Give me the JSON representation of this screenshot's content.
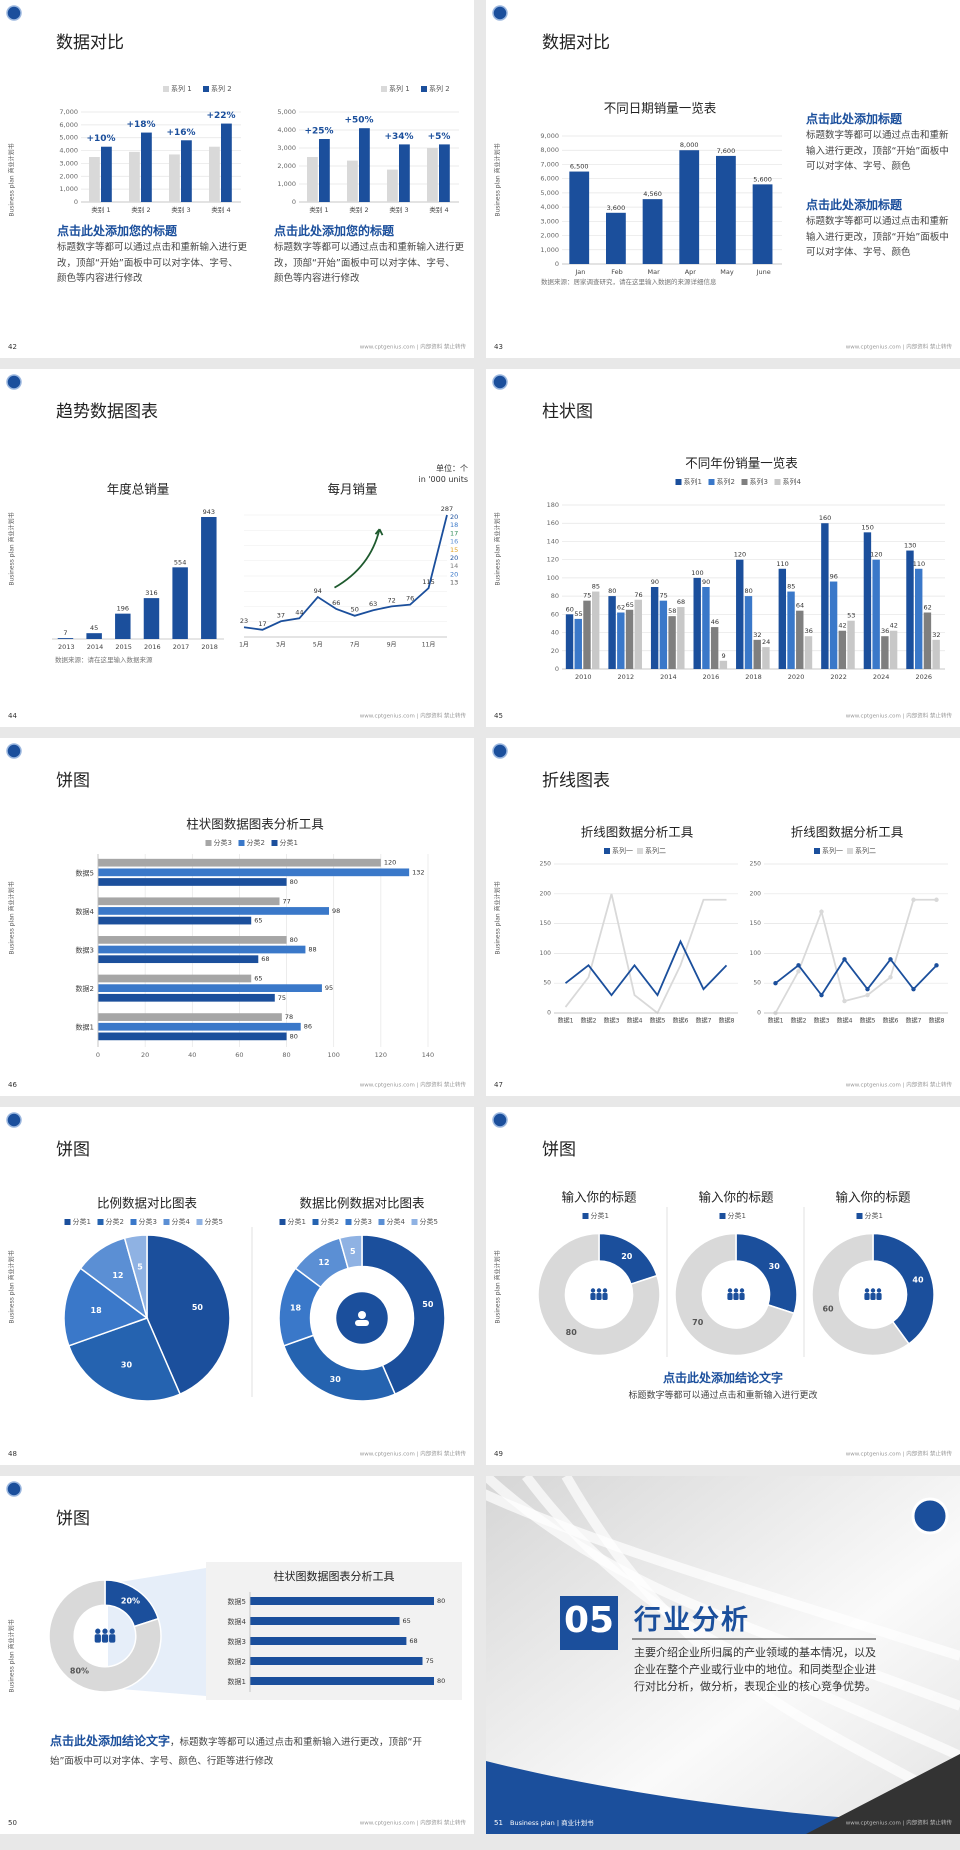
{
  "common": {
    "side_text": "Business plan 商业计划书",
    "footer": "www.cptgenius.com | 内部资料 禁止转传"
  },
  "slides": [
    {
      "page": "42",
      "title": "数据对比",
      "texts": [
        "点击此处添加您的标题",
        "标题数字等都可以通过点击和重新输入进行更改，顶部“开始”面板中可以对字体、字号、颜色等内容进行修改",
        "点击此处添加您的标题",
        "标题数字等都可以通过点击和重新输入进行更改，顶部“开始”面板中可以对字体、字号、颜色等内容进行修改"
      ],
      "charts": [
        {
          "type": "bar",
          "categories": [
            "类别 1",
            "类别 2",
            "类别 3",
            "类别 4"
          ],
          "series": [
            {
              "name": "系列 1",
              "color": "#d9d9d9",
              "values": [
                3500,
                3900,
                3700,
                4300
              ]
            },
            {
              "name": "系列 2",
              "color": "#1b4f9c",
              "values": [
                4300,
                5400,
                4800,
                6100
              ]
            }
          ],
          "ylim": [
            0,
            7000
          ],
          "yticks": [
            0,
            {
              "value": 1000,
              "label": "1,000"
            },
            {
              "value": 2000,
              "label": "2,000"
            },
            {
              "value": 3000,
              "label": "3,000"
            },
            {
              "value": 4000,
              "label": "4,000"
            },
            {
              "value": 5000,
              "label": "5,000"
            },
            {
              "value": 6000,
              "label": "6,000"
            },
            {
              "value": 7000,
              "label": "7,000"
            }
          ],
          "grid": true,
          "legend": "top-right",
          "annotations": [
            "+10%",
            "+18%",
            "+16%",
            "+22%"
          ]
        },
        {
          "type": "bar",
          "categories": [
            "类别 1",
            "类别 2",
            "类别 3",
            "类别 4"
          ],
          "series": [
            {
              "name": "系列 1",
              "color": "#d9d9d9",
              "values": [
                2500,
                2300,
                1800,
                3000
              ]
            },
            {
              "name": "系列 2",
              "color": "#1b4f9c",
              "values": [
                3500,
                4100,
                3200,
                3200
              ]
            }
          ],
          "ylim": [
            0,
            5000
          ],
          "yticks": [
            0,
            {
              "value": 1000,
              "label": "1,000"
            },
            {
              "value": 2000,
              "label": "2,000"
            },
            {
              "value": 3000,
              "label": "3,000"
            },
            {
              "value": 4000,
              "label": "4,000"
            },
            {
              "value": 5000,
              "label": "5,000"
            }
          ],
          "grid": true,
          "legend": "top-right",
          "annotations": [
            "+25%",
            "+50%",
            "+34%",
            "+5%"
          ]
        }
      ]
    },
    {
      "page": "43",
      "title": "数据对比",
      "texts": [
        "点击此处添加标题",
        "标题数字等都可以通过点击和重新输入进行更改，顶部“开始”面板中可以对字体、字号、颜色",
        "点击此处添加标题",
        "标题数字等都可以通过点击和重新输入进行更改，顶部“开始”面板中可以对字体、字号、颜色",
        "数据来源：居家调查研究，请在这里输入数据的来源详细信息"
      ],
      "charts": [
        {
          "type": "bar",
          "title": "不同日期销量一览表",
          "categories": [
            "Jan",
            "Feb",
            "Mar",
            "Apr",
            "May",
            "June"
          ],
          "values": [
            6500,
            3600,
            4560,
            8000,
            7600,
            5600
          ],
          "value_labels": [
            "6,500",
            "3,600",
            "4,560",
            "8,000",
            "7,600",
            "5,600"
          ],
          "color": "#1b4f9c",
          "ylim": [
            0,
            9000
          ],
          "yticks": [
            0,
            {
              "value": 1000,
              "label": "1,000"
            },
            {
              "value": 2000,
              "label": "2,000"
            },
            {
              "value": 3000,
              "label": "3,000"
            },
            {
              "value": 4000,
              "label": "4,000"
            },
            {
              "value": 5000,
              "label": "5,000"
            },
            {
              "value": 6000,
              "label": "6,000"
            },
            {
              "value": 7000,
              "label": "7,000"
            },
            {
              "value": 8000,
              "label": "8,000"
            },
            {
              "value": 9000,
              "label": "9,000"
            }
          ],
          "grid": true,
          "show_values": true
        }
      ]
    },
    {
      "page": "44",
      "title": "趋势数据图表",
      "texts": [
        "单位：个",
        "in '000 units",
        "数据来源：请在这里输入数据来源"
      ],
      "charts": [
        {
          "type": "bar",
          "title": "年度总销量",
          "categories": [
            "2013",
            "2014",
            "2015",
            "2016",
            "2017",
            "2018"
          ],
          "values": [
            7,
            45,
            196,
            316,
            554,
            943
          ],
          "color": "#1b4f9c",
          "show_values": true
        },
        {
          "type": "line",
          "title": "每月销量",
          "categories": [
            "1月",
            null,
            "3月",
            null,
            "5月",
            null,
            "7月",
            null,
            "9月",
            null,
            "11月",
            null
          ],
          "values": [
            23,
            17,
            37,
            44,
            94,
            66,
            50,
            63,
            72,
            76,
            115,
            287
          ],
          "color": "#1b4f9c",
          "show_values": true,
          "end_labels": [
            "20",
            "18",
            "17",
            "16",
            "15",
            "20",
            "14",
            "20",
            "13"
          ]
        }
      ]
    },
    {
      "page": "45",
      "title": "柱状图",
      "texts": [],
      "charts": [
        {
          "type": "bar",
          "title": "不同年份销量一览表",
          "categories": [
            "2010",
            "2012",
            "2014",
            "2016",
            "2018",
            "2020",
            "2022",
            "2024",
            "2026"
          ],
          "series": [
            {
              "name": "系列1",
              "color": "#1b4f9c",
              "values": [
                60,
                80,
                90,
                100,
                120,
                110,
                160,
                150,
                130
              ]
            },
            {
              "name": "系列2",
              "color": "#3a78c9",
              "values": [
                55,
                62,
                75,
                90,
                80,
                85,
                96,
                120,
                110
              ]
            },
            {
              "name": "系列3",
              "color": "#7f7f7f",
              "values": [
                75,
                65,
                58,
                46,
                32,
                64,
                42,
                36,
                62
              ]
            },
            {
              "name": "系列4",
              "color": "#c8c8c8",
              "values": [
                85,
                76,
                68,
                9,
                24,
                36,
                53,
                42,
                32
              ]
            }
          ],
          "ylim": [
            0,
            180
          ],
          "yticks": [
            0,
            20,
            40,
            60,
            80,
            100,
            120,
            140,
            160,
            180
          ],
          "grid": true,
          "legend": "top",
          "show_values": true
        }
      ]
    },
    {
      "page": "46",
      "title": "饼图",
      "texts": [],
      "charts": [
        {
          "type": "hbar",
          "title": "柱状图数据图表分析工具",
          "categories": [
            "数据1",
            "数据2",
            "数据3",
            "数据4",
            "数据5"
          ],
          "series": [
            {
              "name": "分类3",
              "color": "#a6a6a6",
              "values": [
                78,
                65,
                80,
                77,
                120
              ]
            },
            {
              "name": "分类2",
              "color": "#3a78c9",
              "values": [
                86,
                95,
                88,
                98,
                132
              ]
            },
            {
              "name": "分类1",
              "color": "#1b4f9c",
              "values": [
                80,
                75,
                68,
                65,
                80
              ]
            }
          ],
          "xlim": [
            0,
            140
          ],
          "xticks": [
            0,
            20,
            40,
            60,
            80,
            100,
            120,
            140
          ],
          "grid": true,
          "legend": "top",
          "show_values": true
        }
      ]
    },
    {
      "page": "47",
      "title": "折线图表",
      "texts": [],
      "charts": [
        {
          "type": "line",
          "title": "折线图数据分析工具",
          "categories": [
            "数据1",
            "数据2",
            "数据3",
            "数据4",
            "数据5",
            "数据6",
            "数据7",
            "数据8"
          ],
          "series": [
            {
              "name": "系列一",
              "color": "#1b4f9c",
              "values": [
                50,
                80,
                30,
                80,
                30,
                120,
                40,
                80
              ]
            },
            {
              "name": "系列二",
              "color": "#d9d9d9",
              "values": [
                10,
                60,
                200,
                30,
                0,
                80,
                190,
                190
              ]
            }
          ],
          "ylim": [
            0,
            250
          ],
          "yticks": [
            0,
            50,
            100,
            150,
            200,
            250
          ],
          "grid": true,
          "legend": "top",
          "markers": false
        },
        {
          "type": "line",
          "title": "折线图数据分析工具",
          "categories": [
            "数据1",
            "数据2",
            "数据3",
            "数据4",
            "数据5",
            "数据6",
            "数据7",
            "数据8"
          ],
          "series": [
            {
              "name": "系列一",
              "color": "#1b4f9c",
              "values": [
                50,
                80,
                30,
                90,
                40,
                90,
                40,
                80
              ]
            },
            {
              "name": "系列二",
              "color": "#d9d9d9",
              "values": [
                0,
                70,
                170,
                20,
                30,
                60,
                190,
                190
              ]
            }
          ],
          "ylim": [
            0,
            250
          ],
          "yticks": [
            0,
            50,
            100,
            150,
            200,
            250
          ],
          "grid": true,
          "legend": "top",
          "markers": true
        }
      ]
    },
    {
      "page": "48",
      "title": "饼图",
      "texts": [],
      "charts": [
        {
          "type": "pie",
          "title": "比例数据对比图表",
          "categories": [
            "分类1",
            "分类2",
            "分类3",
            "分类4",
            "分类5"
          ],
          "values": [
            50,
            30,
            18,
            12,
            5
          ],
          "colors": [
            "#1b4f9c",
            "#2563b0",
            "#3a78c9",
            "#5b8fd4",
            "#8fb2e3"
          ],
          "legend": "top"
        },
        {
          "type": "donut",
          "title": "数据比例数据对比图表",
          "categories": [
            "分类1",
            "分类2",
            "分类3",
            "分类4",
            "分类5"
          ],
          "values": [
            50,
            30,
            18,
            12,
            5
          ],
          "colors": [
            "#1b4f9c",
            "#2563b0",
            "#3a78c9",
            "#5b8fd4",
            "#8fb2e3"
          ],
          "legend": "top",
          "hole": 0.62
        }
      ]
    },
    {
      "page": "49",
      "title": "饼图",
      "texts": [
        "点击此处添加结论文字",
        "标题数字等都可以通过点击和重新输入进行更改"
      ],
      "charts": [
        {
          "type": "donut",
          "title": "输入你的标题",
          "categories": [
            "分类1",
            null
          ],
          "values": [
            20,
            80
          ],
          "colors": [
            "#1b4f9c",
            "#d9d9d9"
          ],
          "legend": "top",
          "hole": 0.55
        },
        {
          "type": "donut",
          "title": "输入你的标题",
          "categories": [
            "分类1",
            null
          ],
          "values": [
            30,
            70
          ],
          "colors": [
            "#1b4f9c",
            "#d9d9d9"
          ],
          "legend": "top",
          "hole": 0.55
        },
        {
          "type": "donut",
          "title": "输入你的标题",
          "categories": [
            "分类1",
            null
          ],
          "values": [
            40,
            60
          ],
          "colors": [
            "#1b4f9c",
            "#d9d9d9"
          ],
          "legend": "top",
          "hole": 0.55
        }
      ]
    },
    {
      "page": "50",
      "title": "饼图",
      "texts": [
        "点击此处添加结论文字",
        "，标题数字等都可以通过点击和重新输入进行更改，顶部“开始”面板中可以对字体、字号、颜色、行距等进行修改"
      ],
      "charts": [
        {
          "type": "donut",
          "values": [
            20,
            80
          ],
          "value_labels": [
            "20%",
            "80%"
          ],
          "colors": [
            "#1b4f9c",
            "#d9d9d9"
          ],
          "hole": 0.55
        },
        {
          "type": "hbar",
          "title": "柱状图数据图表分析工具",
          "categories": [
            "数据1",
            "数据2",
            "数据3",
            "数据4",
            "数据5"
          ],
          "values": [
            80,
            75,
            68,
            65,
            80
          ],
          "color": "#1b4f9c",
          "show_values": true
        }
      ]
    },
    {
      "page": "51",
      "texts": [
        "05",
        "行业分析",
        "主要介绍企业所归属的产业领域的基本情况，以及企业在整个产业或行业中的地位。和同类型企业进行对比分析，做分析，表现企业的核心竞争优势。",
        "Business plan | 商业计划书"
      ],
      "charts": []
    }
  ]
}
